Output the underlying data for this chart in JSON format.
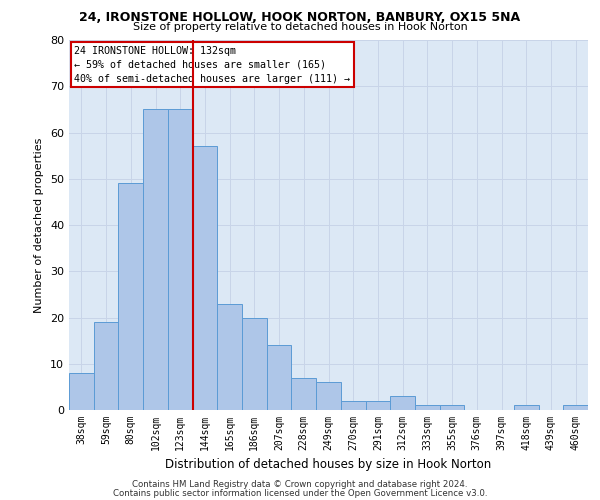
{
  "title1": "24, IRONSTONE HOLLOW, HOOK NORTON, BANBURY, OX15 5NA",
  "title2": "Size of property relative to detached houses in Hook Norton",
  "xlabel": "Distribution of detached houses by size in Hook Norton",
  "ylabel": "Number of detached properties",
  "categories": [
    "38sqm",
    "59sqm",
    "80sqm",
    "102sqm",
    "123sqm",
    "144sqm",
    "165sqm",
    "186sqm",
    "207sqm",
    "228sqm",
    "249sqm",
    "270sqm",
    "291sqm",
    "312sqm",
    "333sqm",
    "355sqm",
    "376sqm",
    "397sqm",
    "418sqm",
    "439sqm",
    "460sqm"
  ],
  "values": [
    8,
    19,
    49,
    65,
    65,
    57,
    23,
    20,
    14,
    7,
    6,
    2,
    2,
    3,
    1,
    1,
    0,
    0,
    1,
    0,
    1
  ],
  "bar_color": "#aec6e8",
  "bar_edge_color": "#5b9bd5",
  "vline_x": 4.5,
  "vline_color": "#cc0000",
  "annotation_line1": "24 IRONSTONE HOLLOW: 132sqm",
  "annotation_line2": "← 59% of detached houses are smaller (165)",
  "annotation_line3": "40% of semi-detached houses are larger (111) →",
  "annotation_box_color": "#ffffff",
  "annotation_box_edge_color": "#cc0000",
  "ylim": [
    0,
    80
  ],
  "yticks": [
    0,
    10,
    20,
    30,
    40,
    50,
    60,
    70,
    80
  ],
  "grid_color": "#c8d4e8",
  "background_color": "#dce8f5",
  "footer1": "Contains HM Land Registry data © Crown copyright and database right 2024.",
  "footer2": "Contains public sector information licensed under the Open Government Licence v3.0."
}
